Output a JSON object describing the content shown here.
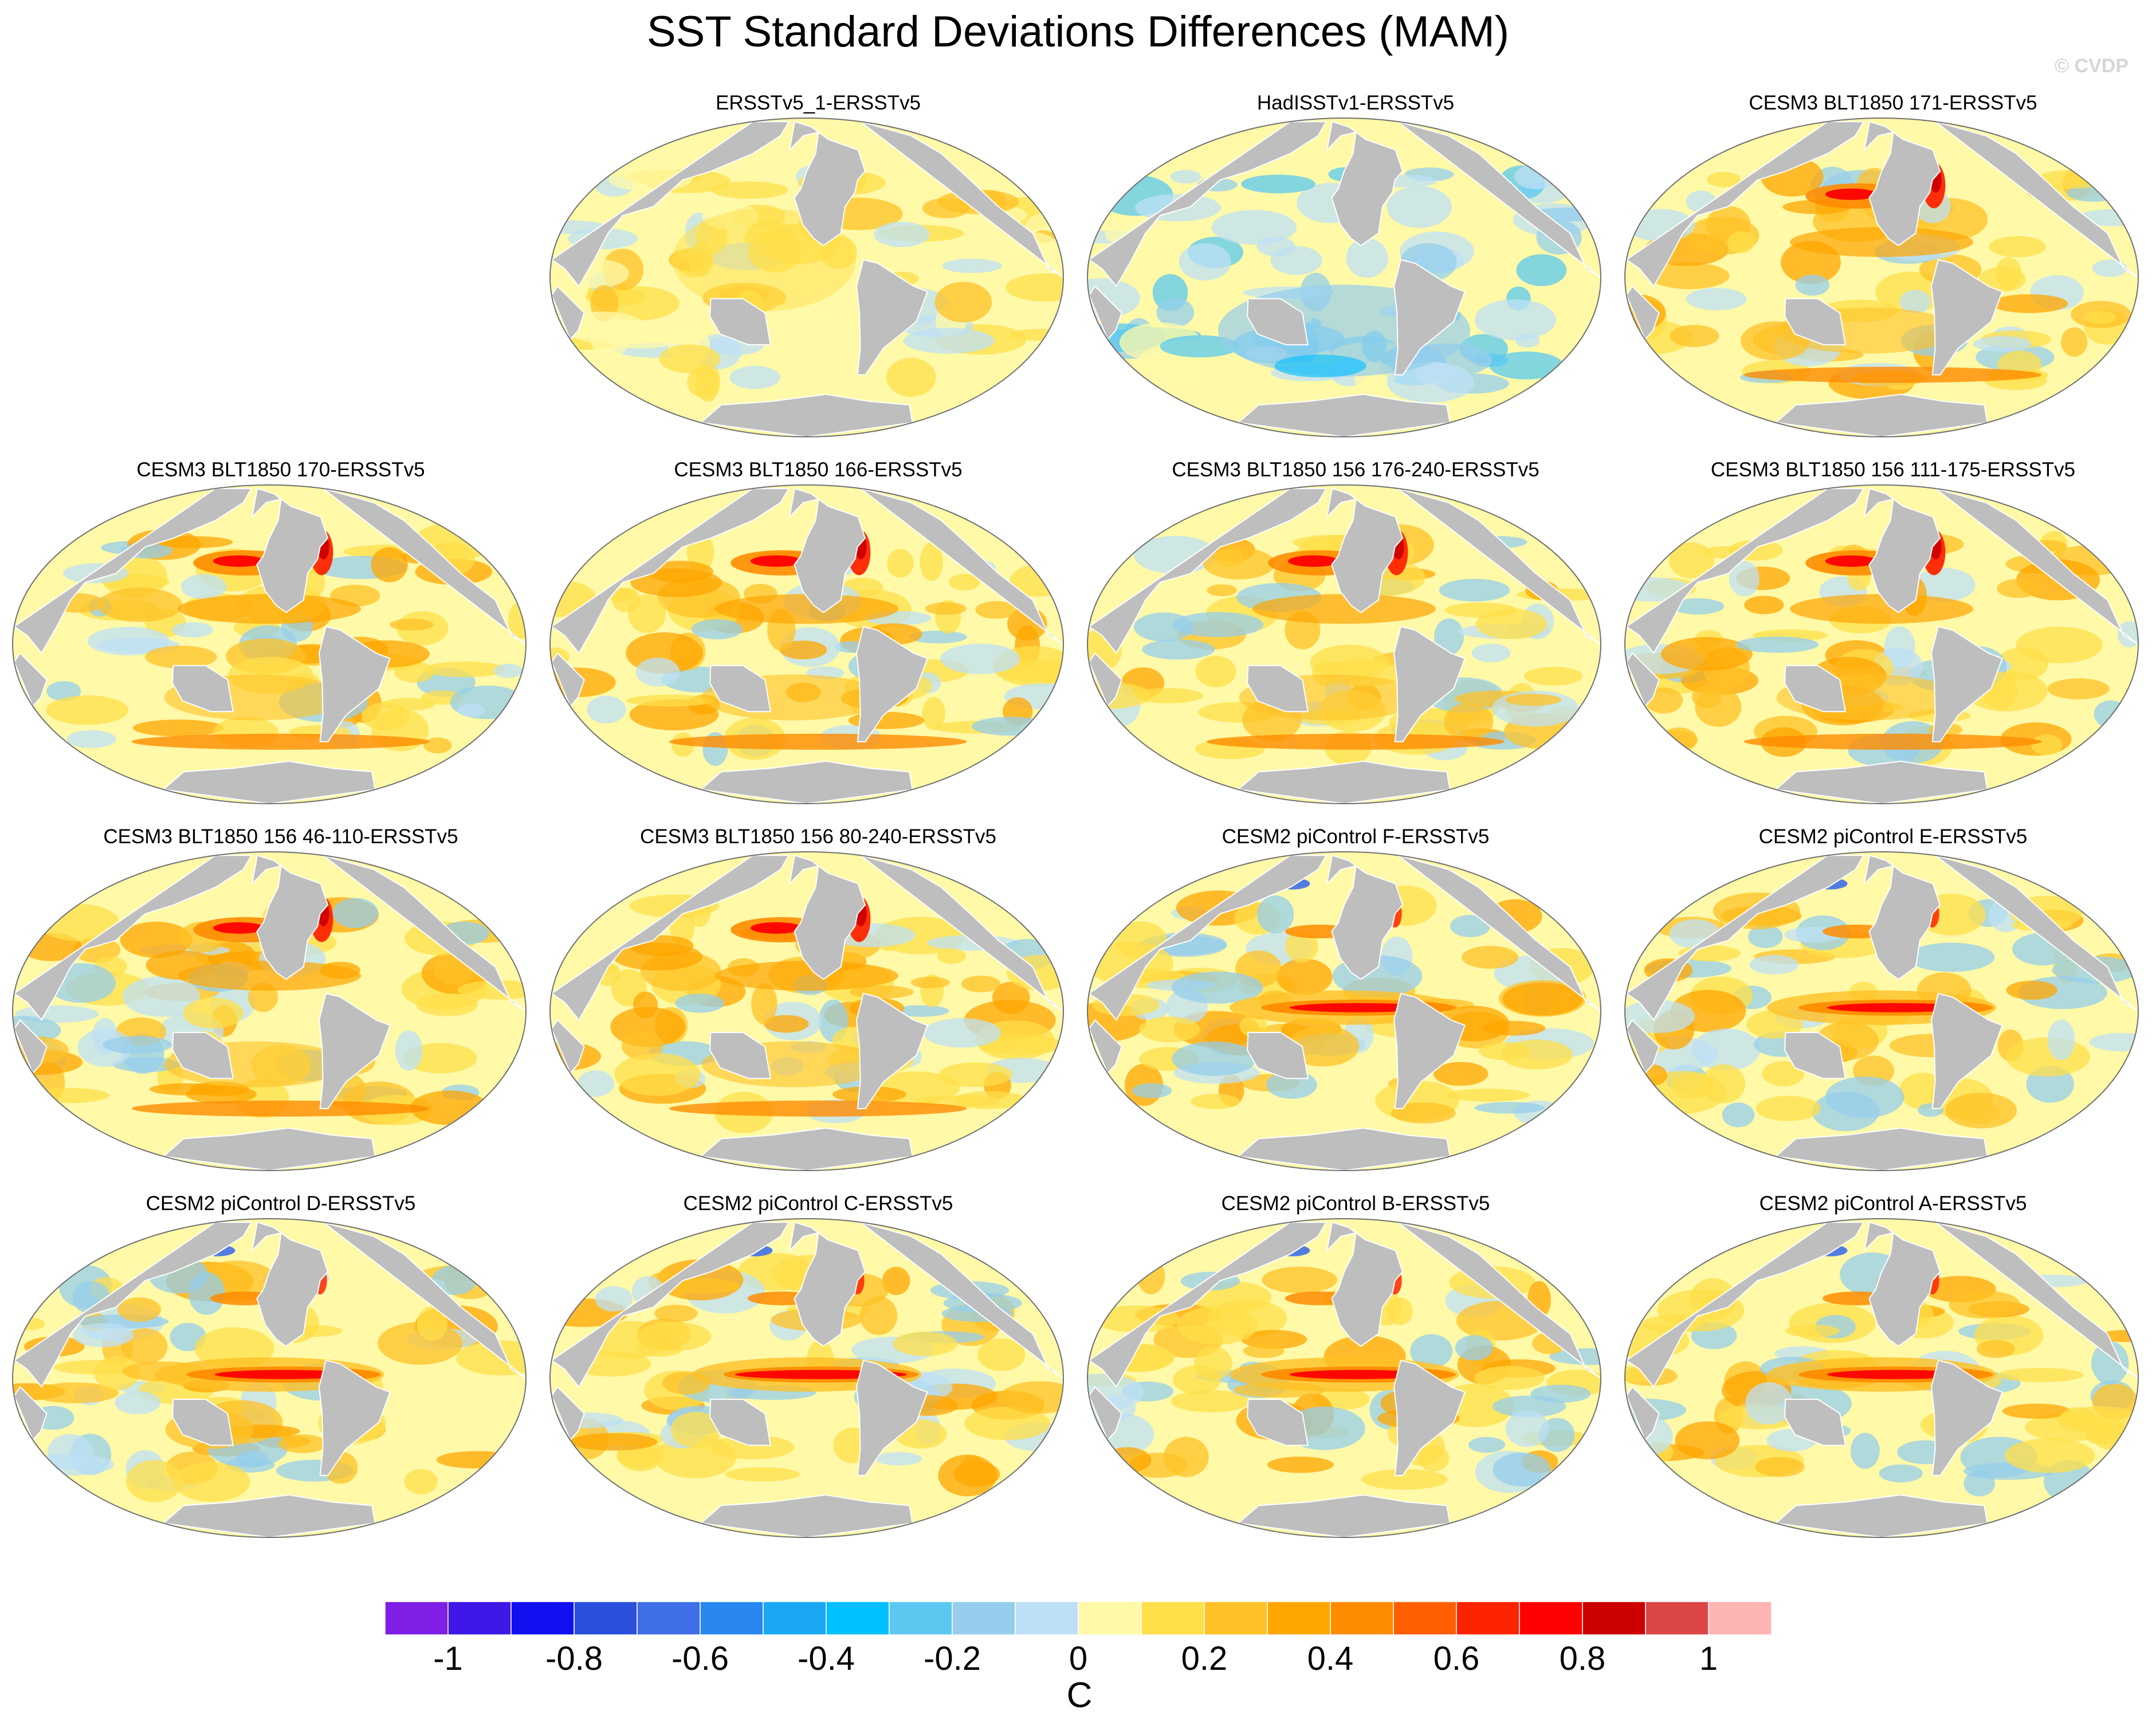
{
  "title": "SST Standard Deviations Differences (MAM)",
  "watermark": "© CVDP",
  "colors": {
    "land": "#bebebe",
    "ocean_neutral": "#fff9a8",
    "panel_border": "#707070"
  },
  "panels": [
    {
      "title": "",
      "empty": true,
      "pattern": "none"
    },
    {
      "title": "ERSSTv5_1-ERSSTv5",
      "pattern": "mild-warm"
    },
    {
      "title": "HadISSTv1-ERSSTv5",
      "pattern": "cool"
    },
    {
      "title": "CESM3 BLT1850 171-ERSSTv5",
      "pattern": "warm-boundary"
    },
    {
      "title": "CESM3 BLT1850 170-ERSSTv5",
      "pattern": "warm-boundary"
    },
    {
      "title": "CESM3 BLT1850 166-ERSSTv5",
      "pattern": "warm-boundary"
    },
    {
      "title": "CESM3 BLT1850 156 176-240-ERSSTv5",
      "pattern": "warm-boundary"
    },
    {
      "title": "CESM3 BLT1850 156 111-175-ERSSTv5",
      "pattern": "warm-boundary"
    },
    {
      "title": "CESM3 BLT1850 156 46-110-ERSSTv5",
      "pattern": "warm-boundary"
    },
    {
      "title": "CESM3 BLT1850 156 80-240-ERSSTv5",
      "pattern": "warm-boundary"
    },
    {
      "title": "CESM2 piControl F-ERSSTv5",
      "pattern": "enso"
    },
    {
      "title": "CESM2 piControl E-ERSSTv5",
      "pattern": "enso"
    },
    {
      "title": "CESM2 piControl D-ERSSTv5",
      "pattern": "enso"
    },
    {
      "title": "CESM2 piControl C-ERSSTv5",
      "pattern": "enso-strong"
    },
    {
      "title": "CESM2 piControl B-ERSSTv5",
      "pattern": "enso"
    },
    {
      "title": "CESM2 piControl A-ERSSTv5",
      "pattern": "enso"
    }
  ],
  "colorbar": {
    "colors": [
      "#7f1fe6",
      "#3f17e6",
      "#1010f0",
      "#2a50dc",
      "#3f6ee6",
      "#2888f0",
      "#1aa8f5",
      "#00bfff",
      "#5ac8f0",
      "#96cdec",
      "#bee0f5",
      "#fff9a8",
      "#ffdf4a",
      "#ffc125",
      "#ffa500",
      "#ff8c00",
      "#ff5f00",
      "#ff2400",
      "#ff0000",
      "#cd0000",
      "#dc4646",
      "#ffb4b4"
    ],
    "tick_labels": [
      "-1",
      "-0.8",
      "-0.6",
      "-0.4",
      "-0.2",
      "0",
      "0.2",
      "0.4",
      "0.6",
      "0.8",
      "1"
    ],
    "units": "C"
  }
}
